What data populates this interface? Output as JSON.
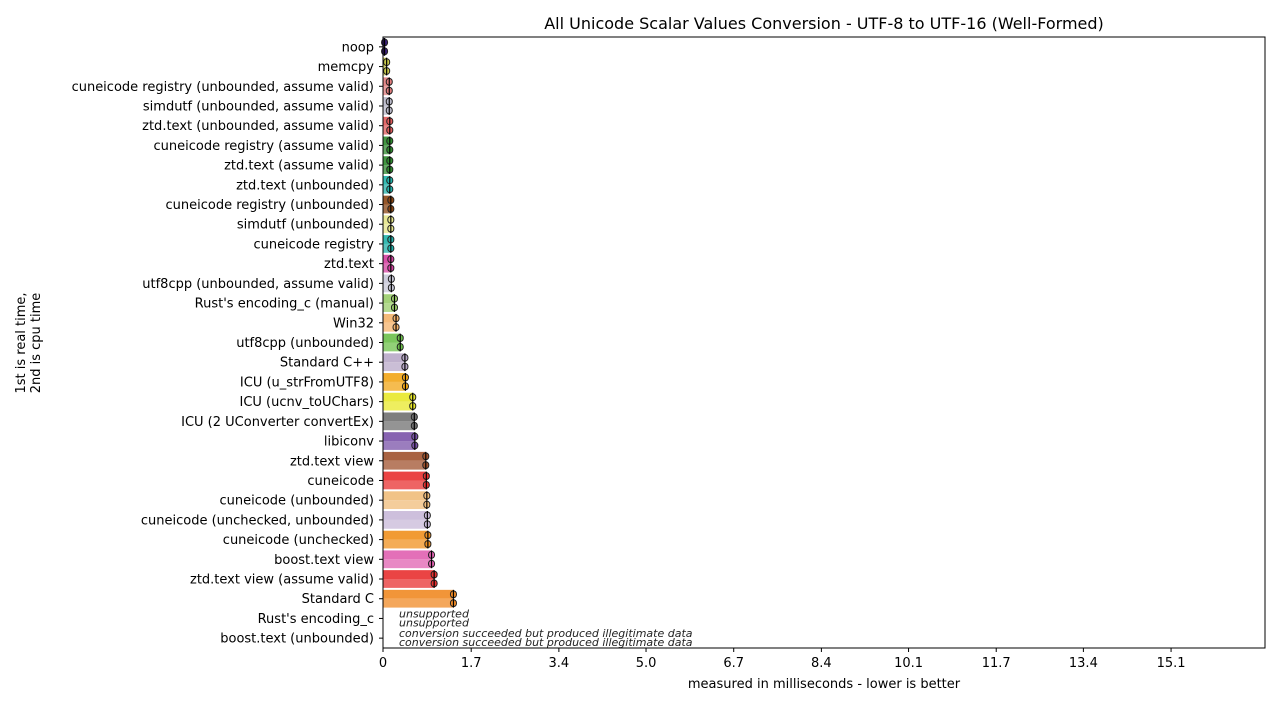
{
  "chart_data": {
    "type": "bar",
    "orientation": "horizontal",
    "title": "All Unicode Scalar Values Conversion - UTF-8 to UTF-16 (Well-Formed)",
    "xlabel": "measured in milliseconds - lower is better",
    "ylabel_lines": [
      "1st is real time,",
      "2nd is cpu time"
    ],
    "xlim": [
      0,
      16.9
    ],
    "xticks": [
      "0",
      "1.7",
      "3.4",
      "5.0",
      "6.7",
      "8.4",
      "10.1",
      "11.7",
      "13.4",
      "15.1"
    ],
    "xtick_values": [
      0,
      1.69,
      3.37,
      5.04,
      6.72,
      8.4,
      10.07,
      11.75,
      13.42,
      15.1
    ],
    "categories": [
      {
        "label": "noop",
        "real": 0.03,
        "cpu": 0.03,
        "color": "#3b1f7a"
      },
      {
        "label": "memcpy",
        "real": 0.07,
        "cpu": 0.07,
        "color": "#c8c84a"
      },
      {
        "label": "cuneicode registry (unbounded, assume valid)",
        "real": 0.12,
        "cpu": 0.12,
        "color": "#e07c7c"
      },
      {
        "label": "simdutf (unbounded, assume valid)",
        "real": 0.12,
        "cpu": 0.12,
        "color": "#b8b8c8"
      },
      {
        "label": "ztd.text (unbounded, assume valid)",
        "real": 0.13,
        "cpu": 0.13,
        "color": "#e05a5a"
      },
      {
        "label": "cuneicode registry (assume valid)",
        "real": 0.13,
        "cpu": 0.13,
        "color": "#2e8b2e"
      },
      {
        "label": "ztd.text (assume valid)",
        "real": 0.13,
        "cpu": 0.13,
        "color": "#2e8b2e"
      },
      {
        "label": "ztd.text (unbounded)",
        "real": 0.13,
        "cpu": 0.13,
        "color": "#20b2aa"
      },
      {
        "label": "cuneicode registry (unbounded)",
        "real": 0.15,
        "cpu": 0.15,
        "color": "#8b4513"
      },
      {
        "label": "simdutf (unbounded)",
        "real": 0.15,
        "cpu": 0.15,
        "color": "#e6e68a"
      },
      {
        "label": "cuneicode registry",
        "real": 0.15,
        "cpu": 0.15,
        "color": "#20b2aa"
      },
      {
        "label": "ztd.text",
        "real": 0.15,
        "cpu": 0.15,
        "color": "#d43fa0"
      },
      {
        "label": "utf8cpp (unbounded, assume valid)",
        "real": 0.16,
        "cpu": 0.16,
        "color": "#c8c8d8"
      },
      {
        "label": "Rust's encoding_c (manual)",
        "real": 0.22,
        "cpu": 0.22,
        "color": "#9acd6a"
      },
      {
        "label": "Win32",
        "real": 0.25,
        "cpu": 0.25,
        "color": "#f4b26a"
      },
      {
        "label": "utf8cpp (unbounded)",
        "real": 0.33,
        "cpu": 0.33,
        "color": "#6cc04a"
      },
      {
        "label": "Standard C++",
        "real": 0.42,
        "cpu": 0.42,
        "color": "#b8a8c8"
      },
      {
        "label": "ICU (u_strFromUTF8)",
        "real": 0.43,
        "cpu": 0.43,
        "color": "#f2a516"
      },
      {
        "label": "ICU (ucnv_toUChars)",
        "real": 0.57,
        "cpu": 0.57,
        "color": "#e8e82a"
      },
      {
        "label": "ICU (2 UConverter convertEx)",
        "real": 0.6,
        "cpu": 0.6,
        "color": "#707070"
      },
      {
        "label": "libiconv",
        "real": 0.61,
        "cpu": 0.61,
        "color": "#7a52a8"
      },
      {
        "label": "ztd.text view",
        "real": 0.82,
        "cpu": 0.82,
        "color": "#a0522d"
      },
      {
        "label": "cuneicode",
        "real": 0.83,
        "cpu": 0.83,
        "color": "#e83030"
      },
      {
        "label": "cuneicode (unbounded)",
        "real": 0.84,
        "cpu": 0.84,
        "color": "#f0bc7a"
      },
      {
        "label": "cuneicode (unchecked, unbounded)",
        "real": 0.85,
        "cpu": 0.85,
        "color": "#c8b8d8"
      },
      {
        "label": "cuneicode (unchecked)",
        "real": 0.86,
        "cpu": 0.86,
        "color": "#f0901e"
      },
      {
        "label": "boost.text view",
        "real": 0.93,
        "cpu": 0.93,
        "color": "#e060b0"
      },
      {
        "label": "ztd.text view (assume valid)",
        "real": 0.98,
        "cpu": 0.98,
        "color": "#e83030"
      },
      {
        "label": "Standard C",
        "real": 1.35,
        "cpu": 1.35,
        "color": "#f08a24"
      },
      {
        "label": "Rust's encoding_c",
        "real": null,
        "cpu": null,
        "color": "#f08a24",
        "note_real": "unsupported",
        "note_cpu": "unsupported"
      },
      {
        "label": "boost.text (unbounded)",
        "real": null,
        "cpu": null,
        "color": "#f08a24",
        "note_real": "conversion succeeded but produced illegitimate data",
        "note_cpu": "conversion succeeded but produced illegitimate data"
      }
    ]
  }
}
